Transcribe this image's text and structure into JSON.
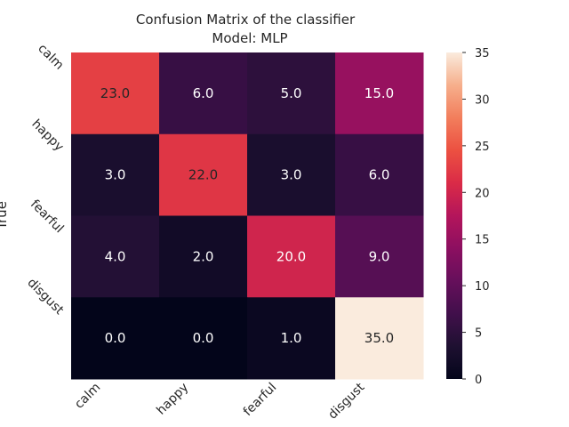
{
  "chart_data": {
    "type": "heatmap",
    "title": "Confusion Matrix of the classifier",
    "subtitle": "Model: MLP",
    "ylabel": "True",
    "xlabel": "",
    "x_categories": [
      "calm",
      "happy",
      "fearful",
      "disgust"
    ],
    "y_categories": [
      "calm",
      "happy",
      "fearful",
      "disgust"
    ],
    "values": [
      [
        23.0,
        6.0,
        5.0,
        15.0
      ],
      [
        3.0,
        22.0,
        3.0,
        6.0
      ],
      [
        4.0,
        2.0,
        20.0,
        9.0
      ],
      [
        0.0,
        0.0,
        1.0,
        35.0
      ]
    ],
    "value_labels": [
      [
        "23.0",
        "6.0",
        "5.0",
        "15.0"
      ],
      [
        "3.0",
        "22.0",
        "3.0",
        "6.0"
      ],
      [
        "4.0",
        "2.0",
        "20.0",
        "9.0"
      ],
      [
        "0.0",
        "0.0",
        "1.0",
        "35.0"
      ]
    ],
    "colorbar": {
      "range": [
        0,
        35
      ],
      "ticks": [
        0,
        5,
        10,
        15,
        20,
        25,
        30,
        35
      ],
      "tick_labels": [
        "0",
        "5",
        "10",
        "15",
        "20",
        "25",
        "30",
        "35"
      ],
      "colormap": "rocket"
    },
    "grid": false
  }
}
